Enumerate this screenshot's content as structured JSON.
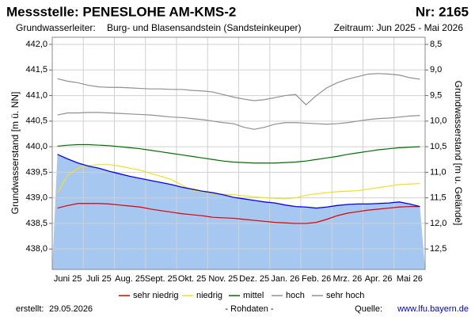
{
  "title": "Messstelle: PENESLOHE AM-KMS-2",
  "number": "Nr: 2165",
  "aquifer_label": "Grundwasserleiter:",
  "aquifer": "Burg- und Blasensandstein (Sandsteinkeuper)",
  "period": "Zeitraum: Jun 2025 - Mai 2026",
  "created_label": "erstellt:",
  "created": "29.05.2026",
  "note": "- Rohdaten -",
  "source_label": "Quelle:",
  "source": "www.lfu.bayern.de",
  "chart_data": {
    "type": "line",
    "y_label": "Grundwasserstand [m ü. NN]",
    "y2_label": "Grundwasserstand [m u. Gelände]",
    "categories": [
      null,
      "Juni 25",
      null,
      null,
      "Juli 25",
      null,
      null,
      "Aug. 25",
      null,
      null,
      "Sept. 25",
      null,
      null,
      "Okt. 25",
      null,
      null,
      "Nov. 25",
      null,
      null,
      "Dez. 25",
      null,
      null,
      "Jan. 26",
      null,
      null,
      "Feb. 26",
      null,
      null,
      "Mrz. 26",
      null,
      null,
      "Apr. 26",
      null,
      null,
      "Mai 26",
      null
    ],
    "ylim": [
      437.6,
      442.14
    ],
    "yticks": [
      {
        "value": 438.0,
        "label": "438,0"
      },
      {
        "value": 438.5,
        "label": "438,5"
      },
      {
        "value": 439.0,
        "label": "439,0"
      },
      {
        "value": 439.5,
        "label": "439,5"
      },
      {
        "value": 440.0,
        "label": "440,0"
      },
      {
        "value": 440.5,
        "label": "440,5"
      },
      {
        "value": 441.0,
        "label": "441,0"
      },
      {
        "value": 441.5,
        "label": "441,5"
      },
      {
        "value": 442.0,
        "label": "442,0"
      }
    ],
    "y2lim": [
      12.9,
      8.36
    ],
    "y2ticks": [
      {
        "value": 8.5,
        "label": "8,5"
      },
      {
        "value": 9.0,
        "label": "9,0"
      },
      {
        "value": 9.5,
        "label": "9,5"
      },
      {
        "value": 10.0,
        "label": "10,0"
      },
      {
        "value": 10.5,
        "label": "10,5"
      },
      {
        "value": 11.0,
        "label": "11,0"
      },
      {
        "value": 11.5,
        "label": "11,5"
      },
      {
        "value": 12.0,
        "label": "12,0"
      },
      {
        "value": 12.5,
        "label": "12,5"
      }
    ],
    "grid": true,
    "series": [
      {
        "color": "#0000ff",
        "fill": "#a6c8f0",
        "values": [
          439.85,
          439.76,
          439.68,
          439.62,
          439.58,
          439.52,
          439.47,
          439.42,
          439.38,
          439.34,
          439.3,
          439.26,
          439.21,
          439.17,
          439.13,
          439.1,
          439.06,
          439.01,
          438.98,
          438.95,
          438.92,
          438.9,
          438.86,
          438.83,
          438.82,
          438.8,
          438.82,
          438.85,
          438.87,
          438.88,
          438.88,
          438.89,
          438.9,
          438.92,
          438.88,
          438.83
        ]
      },
      {
        "name": "sehr niedrig",
        "color": "#dd0000",
        "values": [
          438.8,
          438.85,
          438.89,
          438.89,
          438.89,
          438.88,
          438.86,
          438.84,
          438.82,
          438.78,
          438.75,
          438.72,
          438.69,
          438.67,
          438.65,
          438.62,
          438.61,
          438.6,
          438.58,
          438.56,
          438.54,
          438.52,
          438.51,
          438.5,
          438.5,
          438.52,
          438.58,
          438.65,
          438.7,
          438.73,
          438.76,
          438.78,
          438.8,
          438.82,
          438.83,
          438.83
        ]
      },
      {
        "name": "niedrig",
        "color": "#f0e020",
        "values": [
          439.1,
          439.45,
          439.58,
          439.63,
          439.65,
          439.65,
          439.62,
          439.58,
          439.54,
          439.48,
          439.42,
          439.36,
          439.25,
          439.14,
          439.12,
          439.08,
          439.07,
          439.06,
          439.04,
          439.02,
          439.0,
          438.99,
          438.98,
          439.0,
          439.05,
          439.08,
          439.1,
          439.12,
          439.13,
          439.14,
          439.17,
          439.2,
          439.23,
          439.26,
          439.27,
          439.28
        ]
      },
      {
        "name": "mittel",
        "color": "#007000",
        "values": [
          440.01,
          440.03,
          440.04,
          440.04,
          440.03,
          440.02,
          440.0,
          439.98,
          439.96,
          439.93,
          439.9,
          439.87,
          439.84,
          439.81,
          439.78,
          439.75,
          439.72,
          439.7,
          439.69,
          439.68,
          439.68,
          439.68,
          439.69,
          439.7,
          439.72,
          439.75,
          439.78,
          439.81,
          439.85,
          439.88,
          439.91,
          439.94,
          439.96,
          439.98,
          439.99,
          440.0
        ]
      },
      {
        "name": "hoch",
        "color": "#909090",
        "values": [
          440.62,
          440.66,
          440.66,
          440.67,
          440.67,
          440.66,
          440.65,
          440.64,
          440.63,
          440.62,
          440.6,
          440.58,
          440.57,
          440.55,
          440.53,
          440.5,
          440.47,
          440.45,
          440.38,
          440.34,
          440.38,
          440.44,
          440.47,
          440.47,
          440.46,
          440.45,
          440.44,
          440.45,
          440.47,
          440.5,
          440.53,
          440.55,
          440.56,
          440.58,
          440.6,
          440.61
        ]
      },
      {
        "name": "sehr hoch",
        "color": "#909090",
        "values": [
          441.33,
          441.28,
          441.25,
          441.2,
          441.17,
          441.16,
          441.16,
          441.15,
          441.14,
          441.13,
          441.13,
          441.12,
          441.12,
          441.1,
          441.09,
          441.07,
          441.02,
          440.97,
          440.93,
          440.9,
          440.92,
          440.96,
          441.0,
          441.02,
          440.82,
          441.0,
          441.15,
          441.25,
          441.32,
          441.37,
          441.42,
          441.43,
          441.42,
          441.4,
          441.35,
          441.32
        ]
      }
    ]
  }
}
